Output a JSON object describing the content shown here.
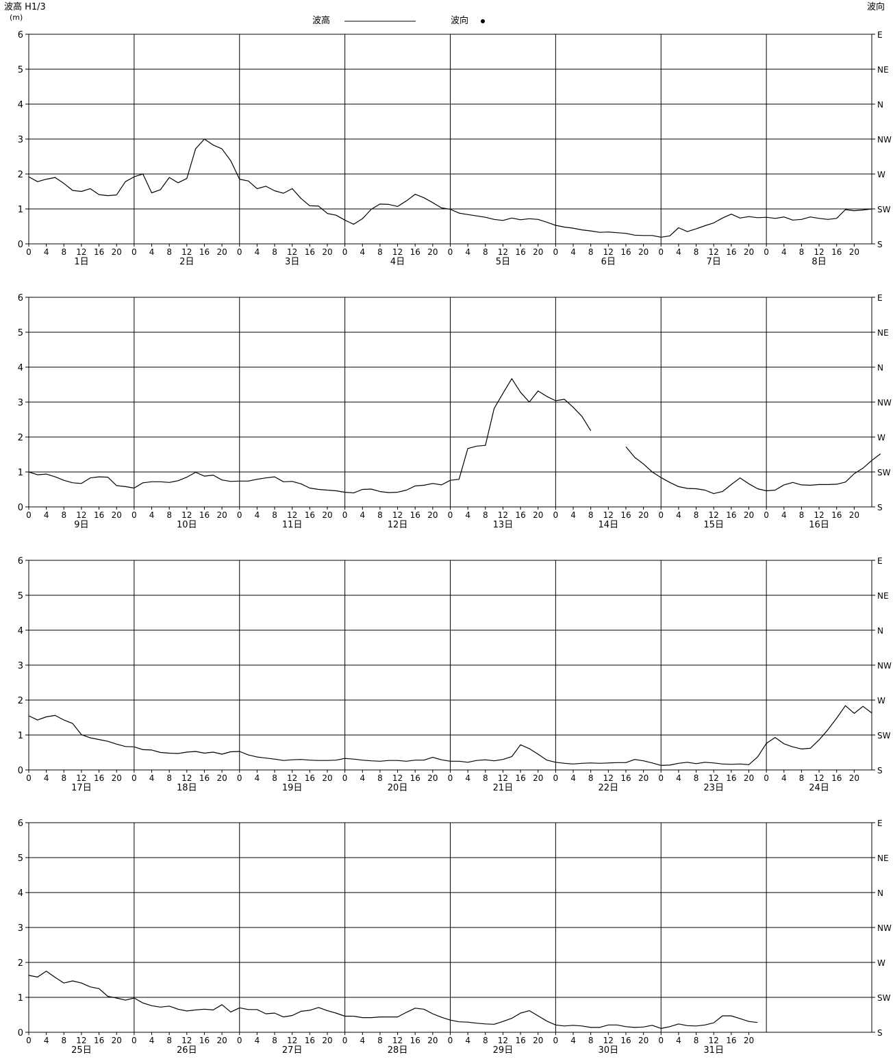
{
  "header": {
    "left_label": "波高 H1/3",
    "left_unit": "(m)",
    "right_label": "波向",
    "legend_height": "波高",
    "legend_direction": "波向"
  },
  "chart_data": {
    "type": "line",
    "interval_hours": 2,
    "y_ticks": [
      "0",
      "1",
      "2",
      "3",
      "4",
      "5",
      "6"
    ],
    "ylim": [
      0,
      6
    ],
    "direction_ticks": [
      "S",
      "SW",
      "W",
      "NW",
      "N",
      "NE",
      "E"
    ],
    "hour_ticks": [
      "0",
      "4",
      "8",
      "12",
      "16",
      "20"
    ],
    "grid": true,
    "panels": [
      {
        "day_labels": [
          "1日",
          "2日",
          "3日",
          "4日",
          "5日",
          "6日",
          "7日",
          "8日"
        ],
        "series": [
          {
            "values": [
              1.92,
              1.78,
              1.85,
              1.9,
              1.73,
              1.53,
              1.5,
              1.58,
              1.41,
              1.38,
              1.4,
              1.78,
              1.92,
              2.0,
              1.46,
              1.55,
              1.9,
              1.75,
              1.87,
              2.72,
              3.0,
              2.83,
              2.72,
              2.38,
              1.85,
              1.8,
              1.58,
              1.65,
              1.52,
              1.45,
              1.58,
              1.3,
              1.09,
              1.08,
              0.87,
              0.82,
              0.68,
              0.56,
              0.72,
              0.99,
              1.14,
              1.13,
              1.07,
              1.23,
              1.42,
              1.32,
              1.18,
              1.03,
              0.99,
              0.88,
              0.84,
              0.8,
              0.76,
              0.7,
              0.67,
              0.74,
              0.69,
              0.72,
              0.7,
              0.62,
              0.53,
              0.48,
              0.45,
              0.4,
              0.37,
              0.33,
              0.34,
              0.32,
              0.3,
              0.25,
              0.24,
              0.24,
              0.19,
              0.23,
              0.46,
              0.35,
              0.43,
              0.52,
              0.6,
              0.74,
              0.85,
              0.74,
              0.78,
              0.75,
              0.76,
              0.73,
              0.77,
              0.68,
              0.7,
              0.77,
              0.73,
              0.7,
              0.73,
              0.98,
              0.95,
              0.97,
              1.0
            ]
          }
        ]
      },
      {
        "day_labels": [
          "9日",
          "10日",
          "11日",
          "12日",
          "13日",
          "14日",
          "15日",
          "16日"
        ],
        "series": [
          {
            "values": [
              1.0,
              0.92,
              0.94,
              0.86,
              0.76,
              0.69,
              0.67,
              0.83,
              0.86,
              0.85,
              0.61,
              0.58,
              0.54,
              0.69,
              0.72,
              0.72,
              0.7,
              0.75,
              0.85,
              0.99,
              0.88,
              0.91,
              0.77,
              0.73,
              0.74,
              0.74,
              0.79,
              0.83,
              0.86,
              0.72,
              0.73,
              0.66,
              0.54,
              0.5,
              0.48,
              0.46,
              0.42,
              0.4,
              0.5,
              0.51,
              0.44,
              0.41,
              0.42,
              0.48,
              0.6,
              0.62,
              0.67,
              0.63,
              0.76,
              0.79,
              1.67,
              1.74,
              1.76,
              2.82,
              3.25,
              3.67,
              3.28,
              3.0,
              3.32,
              3.16,
              3.04,
              3.08,
              2.85,
              2.59,
              2.18,
              null,
              null,
              null,
              1.72,
              1.42,
              1.23,
              1.0,
              0.84,
              0.7,
              0.58,
              0.53,
              0.52,
              0.48,
              0.38,
              0.44,
              0.64,
              0.83,
              0.66,
              0.52,
              0.46,
              0.48,
              0.63,
              0.7,
              0.63,
              0.62,
              0.64,
              0.64,
              0.65,
              0.71,
              0.95,
              1.11,
              1.33,
              1.52
            ]
          }
        ]
      },
      {
        "day_labels": [
          "17日",
          "18日",
          "19日",
          "20日",
          "21日",
          "22日",
          "23日",
          "24日"
        ],
        "series": [
          {
            "values": [
              1.55,
              1.43,
              1.52,
              1.56,
              1.43,
              1.33,
              1.01,
              0.92,
              0.87,
              0.82,
              0.74,
              0.67,
              0.66,
              0.58,
              0.57,
              0.5,
              0.48,
              0.47,
              0.51,
              0.53,
              0.48,
              0.51,
              0.45,
              0.52,
              0.53,
              0.43,
              0.37,
              0.34,
              0.31,
              0.27,
              0.29,
              0.3,
              0.28,
              0.27,
              0.27,
              0.28,
              0.33,
              0.31,
              0.28,
              0.26,
              0.25,
              0.27,
              0.27,
              0.25,
              0.28,
              0.28,
              0.36,
              0.29,
              0.25,
              0.25,
              0.22,
              0.27,
              0.29,
              0.26,
              0.3,
              0.38,
              0.72,
              0.61,
              0.45,
              0.28,
              0.22,
              0.19,
              0.17,
              0.19,
              0.2,
              0.19,
              0.2,
              0.21,
              0.21,
              0.3,
              0.26,
              0.2,
              0.13,
              0.14,
              0.19,
              0.22,
              0.18,
              0.22,
              0.2,
              0.17,
              0.16,
              0.17,
              0.15,
              0.37,
              0.76,
              0.93,
              0.75,
              0.66,
              0.6,
              0.62,
              0.86,
              1.15,
              1.48,
              1.84,
              1.62,
              1.82,
              1.63
            ]
          }
        ]
      },
      {
        "day_labels": [
          "25日",
          "26日",
          "27日",
          "28日",
          "29日",
          "30日",
          "31日"
        ],
        "series": [
          {
            "values": [
              1.63,
              1.58,
              1.75,
              1.57,
              1.41,
              1.47,
              1.41,
              1.3,
              1.25,
              1.03,
              0.98,
              0.92,
              0.98,
              0.84,
              0.76,
              0.72,
              0.75,
              0.66,
              0.61,
              0.64,
              0.66,
              0.64,
              0.79,
              0.58,
              0.7,
              0.65,
              0.65,
              0.53,
              0.55,
              0.44,
              0.48,
              0.6,
              0.63,
              0.71,
              0.62,
              0.55,
              0.46,
              0.46,
              0.42,
              0.42,
              0.44,
              0.44,
              0.44,
              0.57,
              0.69,
              0.66,
              0.53,
              0.43,
              0.35,
              0.3,
              0.29,
              0.26,
              0.24,
              0.23,
              0.31,
              0.4,
              0.55,
              0.62,
              0.47,
              0.32,
              0.21,
              0.18,
              0.2,
              0.18,
              0.14,
              0.14,
              0.21,
              0.21,
              0.16,
              0.14,
              0.15,
              0.2,
              0.11,
              0.16,
              0.24,
              0.19,
              0.18,
              0.21,
              0.27,
              0.47,
              0.47,
              0.39,
              0.31,
              0.28
            ]
          }
        ]
      }
    ]
  }
}
